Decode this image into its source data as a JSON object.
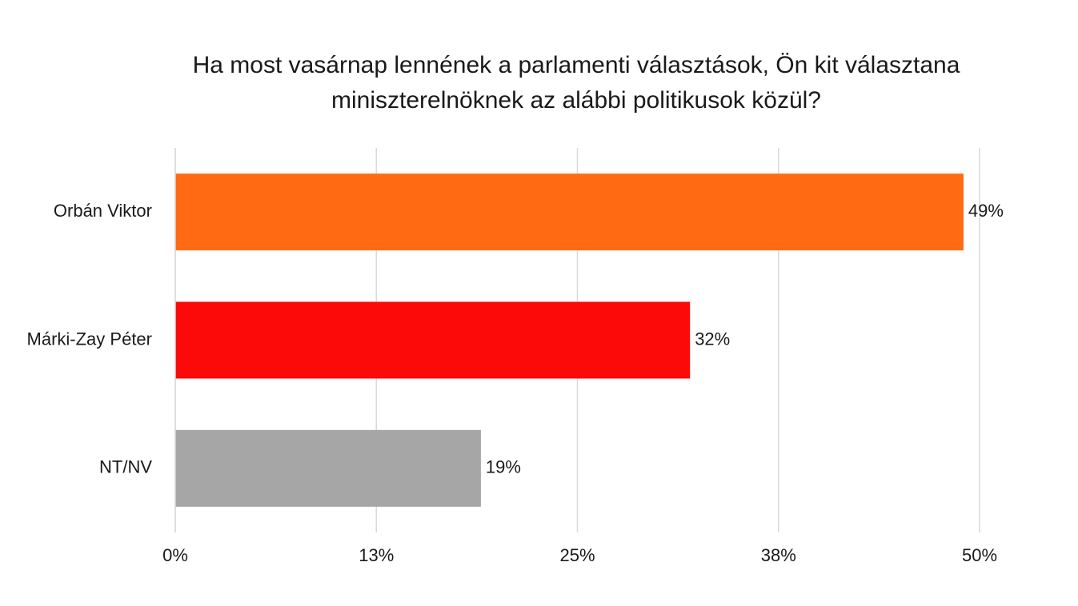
{
  "chart_data": {
    "type": "hbar",
    "title": "Ha most vasárnap lennének a parlamenti választások, Ön kit választana miniszterelnöknek az alábbi politikusok közül?",
    "categories": [
      "Orbán Viktor",
      "Márki-Zay Péter",
      "NT/NV"
    ],
    "values": [
      49,
      32,
      19
    ],
    "value_labels": [
      "49%",
      "32%",
      "19%"
    ],
    "colors": [
      "#ff6a13",
      "#fc0a0a",
      "#a6a6a6"
    ],
    "xlim": [
      0,
      50
    ],
    "xticks": [
      {
        "value": 0,
        "label": "0%"
      },
      {
        "value": 12.5,
        "label": "13%"
      },
      {
        "value": 25,
        "label": "25%"
      },
      {
        "value": 37.5,
        "label": "38%"
      },
      {
        "value": 50,
        "label": "50%"
      }
    ],
    "grid": true
  }
}
